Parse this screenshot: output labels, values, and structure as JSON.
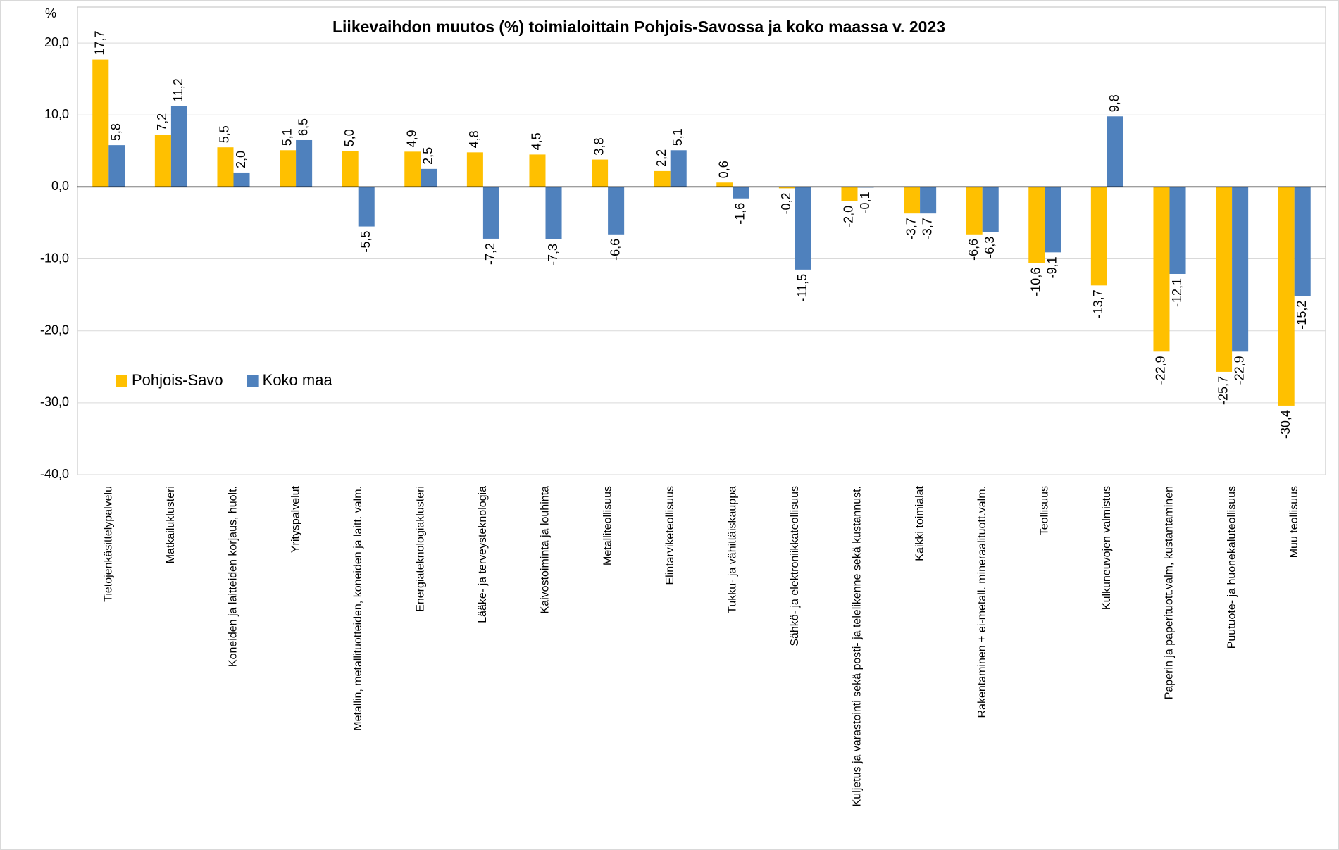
{
  "chart_data": {
    "type": "bar",
    "title": "Liikevaihdon muutos (%) toimialoittain Pohjois-Savossa ja koko maassa v. 2023",
    "y_label": "%",
    "categories": [
      "Tietojenkäsittelypalvelu",
      "Matkailuklusteri",
      "Koneiden ja laitteiden korjaus, huolt.",
      "Yrityspalvelut",
      "Metallin, metallituotteiden, koneiden ja laitt. valm.",
      "Energiateknologiaklusteri",
      "Lääke- ja terveysteknologia",
      "Kaivostoiminta ja louhinta",
      "Metalliteollisuus",
      "Elintarviketeollisuus",
      "Tukku- ja vähittäiskauppa",
      "Sähkö- ja elektroniikkateollisuus",
      "Kuljetus ja varastointi sekä posti- ja telelikenne sekä kustannust.",
      "Kaikki toimialat",
      "Rakentaminen + ei-metall. mineraalituott.valm.",
      "Teollisuus",
      "Kulkuneuvojen valmistus",
      "Paperin ja paperituott.valm, kustantaminen",
      "Puutuote- ja huonekaluteollisuus",
      "Muu teollisuus"
    ],
    "series": [
      {
        "name": "Pohjois-Savo",
        "color": "#ffc000",
        "values": [
          17.7,
          7.2,
          5.5,
          5.1,
          5.0,
          4.9,
          4.8,
          4.5,
          3.8,
          2.2,
          0.6,
          -0.2,
          -2.0,
          -3.7,
          -6.6,
          -10.6,
          -13.7,
          -22.9,
          -25.7,
          -30.4
        ],
        "value_labels": [
          "17,7",
          "7,2",
          "5,5",
          "5,1",
          "5,0",
          "4,9",
          "4,8",
          "4,5",
          "3,8",
          "2,2",
          "0,6",
          "-0,2",
          "-2,0",
          "-3,7",
          "-6,6",
          "-10,6",
          "-13,7",
          "-22,9",
          "-25,7",
          "-30,4"
        ]
      },
      {
        "name": "Koko maa",
        "color": "#4f81bd",
        "values": [
          5.8,
          11.2,
          2.0,
          6.5,
          -5.5,
          2.5,
          -7.2,
          -7.3,
          -6.6,
          5.1,
          -1.6,
          -11.5,
          -0.1,
          -3.7,
          -6.3,
          -9.1,
          9.8,
          -12.1,
          -22.9,
          -15.2
        ],
        "value_labels": [
          "5,8",
          "11,2",
          "2,0",
          "6,5",
          "-5,5",
          "2,5",
          "-7,2",
          "-7,3",
          "-6,6",
          "5,1",
          "-1,6",
          "-11,5",
          "-0,1",
          "-3,7",
          "-6,3",
          "-9,1",
          "9,8",
          "-12,1",
          "-22,9",
          "-15,2"
        ]
      }
    ],
    "ylim": [
      -40,
      25
    ],
    "yticks": [
      {
        "value": -40,
        "label": "-40,0"
      },
      {
        "value": -30,
        "label": "-30,0"
      },
      {
        "value": -20,
        "label": "-20,0"
      },
      {
        "value": -10,
        "label": "-10,0"
      },
      {
        "value": 0,
        "label": "0,0"
      },
      {
        "value": 10,
        "label": "10,0"
      },
      {
        "value": 20,
        "label": "20,0"
      }
    ],
    "grid": true,
    "legend": "left"
  }
}
